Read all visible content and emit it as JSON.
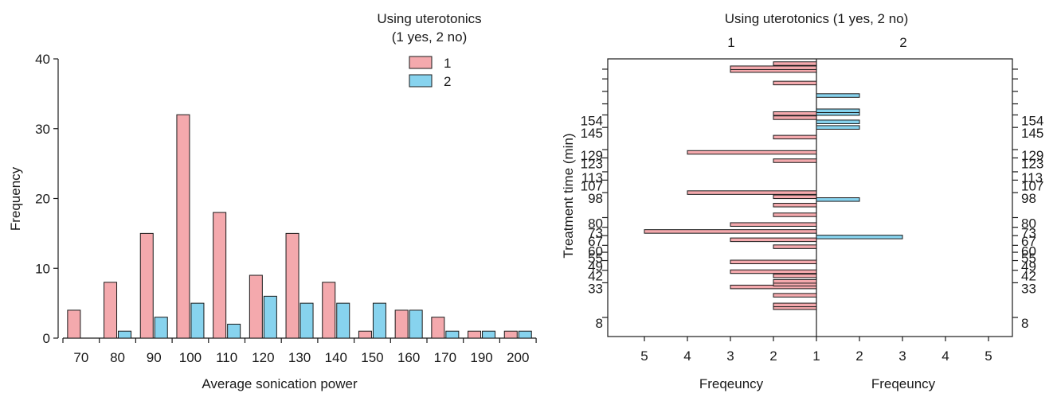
{
  "colors": {
    "series1": "#f4a9ad",
    "series2": "#87d3ee",
    "axis": "#1a1a1a"
  },
  "chart_data": [
    {
      "type": "bar",
      "legend_title_line1": "Using uterotonics",
      "legend_title_line2": "(1 yes, 2 no)",
      "legend_position": "top-right",
      "xlabel": "Average sonication power",
      "ylabel": "Frequency",
      "ylim": [
        0,
        40
      ],
      "yticks": [
        0,
        10,
        20,
        30,
        40
      ],
      "categories": [
        "70",
        "80",
        "90",
        "100",
        "110",
        "120",
        "130",
        "140",
        "150",
        "160",
        "170",
        "190",
        "200"
      ],
      "series": [
        {
          "name": "1",
          "values": [
            4,
            8,
            15,
            32,
            18,
            9,
            15,
            8,
            1,
            4,
            3,
            1,
            1
          ]
        },
        {
          "name": "2",
          "values": [
            0,
            1,
            3,
            5,
            2,
            6,
            5,
            5,
            5,
            4,
            1,
            1,
            1
          ]
        }
      ]
    },
    {
      "type": "bar",
      "orientation": "horizontal-back-to-back",
      "title": "Using uterotonics (1 yes, 2 no)",
      "panel_labels": [
        "1",
        "2"
      ],
      "ylabel": "Treatment time (min)",
      "xlabel_left": "Freqeuncy",
      "xlabel_right": "Freqeuncy",
      "x_tick_labels": [
        "5",
        "4",
        "3",
        "2",
        "1",
        "2",
        "3",
        "4",
        "5"
      ],
      "xlim_each_side": [
        1,
        5
      ],
      "ylim": [
        0,
        190
      ],
      "y_tick_values": [
        8,
        33,
        42,
        49,
        55,
        60,
        67,
        73,
        80,
        98,
        107,
        113,
        123,
        129,
        145,
        154,
        162,
        171,
        180,
        187
      ],
      "y_tick_labels": [
        "8",
        "33",
        "42",
        "49",
        "55",
        "60",
        "67",
        "73",
        "80",
        "98",
        "107",
        "113",
        "123",
        "129",
        "145",
        "154",
        "",
        "",
        "",
        ""
      ],
      "series": [
        {
          "name": "1",
          "points": [
            {
              "y": 15,
              "value": 2
            },
            {
              "y": 17,
              "value": 2
            },
            {
              "y": 24,
              "value": 2
            },
            {
              "y": 30,
              "value": 3
            },
            {
              "y": 32,
              "value": 2
            },
            {
              "y": 34,
              "value": 2
            },
            {
              "y": 38,
              "value": 2
            },
            {
              "y": 41,
              "value": 3
            },
            {
              "y": 48,
              "value": 3
            },
            {
              "y": 59,
              "value": 2
            },
            {
              "y": 64,
              "value": 3
            },
            {
              "y": 70,
              "value": 5
            },
            {
              "y": 75,
              "value": 3
            },
            {
              "y": 82,
              "value": 2
            },
            {
              "y": 89,
              "value": 2
            },
            {
              "y": 95,
              "value": 2
            },
            {
              "y": 98,
              "value": 4
            },
            {
              "y": 121,
              "value": 2
            },
            {
              "y": 127,
              "value": 4
            },
            {
              "y": 138,
              "value": 2
            },
            {
              "y": 152,
              "value": 2
            },
            {
              "y": 155,
              "value": 2
            },
            {
              "y": 177,
              "value": 2
            },
            {
              "y": 186,
              "value": 3
            },
            {
              "y": 188,
              "value": 3
            },
            {
              "y": 191,
              "value": 2
            }
          ]
        },
        {
          "name": "2",
          "points": [
            {
              "y": 66,
              "value": 3
            },
            {
              "y": 93,
              "value": 2
            },
            {
              "y": 145,
              "value": 2
            },
            {
              "y": 149,
              "value": 2
            },
            {
              "y": 155,
              "value": 2
            },
            {
              "y": 157,
              "value": 2
            },
            {
              "y": 168,
              "value": 2
            }
          ]
        }
      ]
    }
  ]
}
